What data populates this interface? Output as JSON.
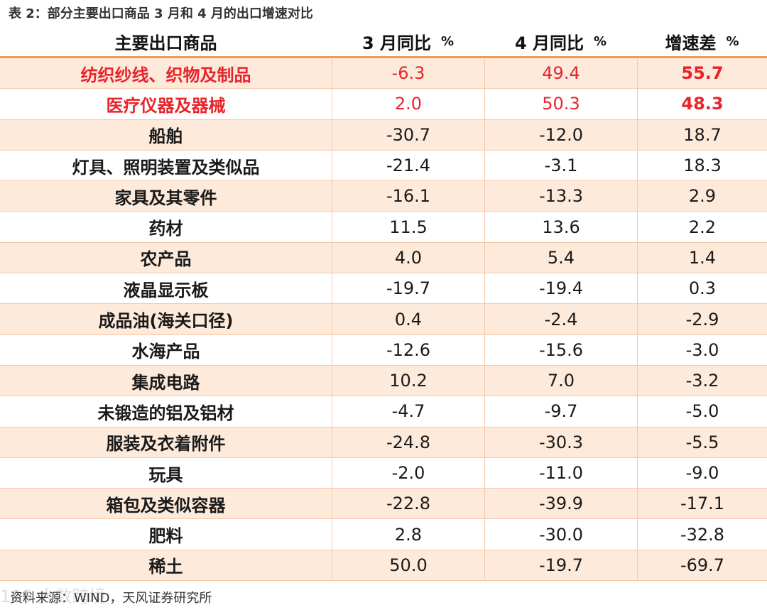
{
  "caption": "表 2：部分主要出口商品 3 月和 4 月的出口增速对比",
  "header": {
    "col1": "主要出口商品",
    "col2": "3 月同比",
    "col3": "4 月同比",
    "col4": "增速差",
    "unit": "%"
  },
  "rows": [
    {
      "name": "纺织纱线、织物及制品",
      "mar": "-6.3",
      "apr": "49.4",
      "diff": "55.7"
    },
    {
      "name": "医疗仪器及器械",
      "mar": "2.0",
      "apr": "50.3",
      "diff": "48.3"
    },
    {
      "name": "船舶",
      "mar": "-30.7",
      "apr": "-12.0",
      "diff": "18.7"
    },
    {
      "name": "灯具、照明装置及类似品",
      "mar": "-21.4",
      "apr": "-3.1",
      "diff": "18.3"
    },
    {
      "name": "家具及其零件",
      "mar": "-16.1",
      "apr": "-13.3",
      "diff": "2.9"
    },
    {
      "name": "药材",
      "mar": "11.5",
      "apr": "13.6",
      "diff": "2.2"
    },
    {
      "name": "农产品",
      "mar": "4.0",
      "apr": "5.4",
      "diff": "1.4"
    },
    {
      "name": "液晶显示板",
      "mar": "-19.7",
      "apr": "-19.4",
      "diff": "0.3"
    },
    {
      "name": "成品油(海关口径)",
      "mar": "0.4",
      "apr": "-2.4",
      "diff": "-2.9"
    },
    {
      "name": "水海产品",
      "mar": "-12.6",
      "apr": "-15.6",
      "diff": "-3.0"
    },
    {
      "name": "集成电路",
      "mar": "10.2",
      "apr": "7.0",
      "diff": "-3.2"
    },
    {
      "name": "未锻造的铝及铝材",
      "mar": "-4.7",
      "apr": "-9.7",
      "diff": "-5.0"
    },
    {
      "name": "服装及衣着附件",
      "mar": "-24.8",
      "apr": "-30.3",
      "diff": "-5.5"
    },
    {
      "name": "玩具",
      "mar": "-2.0",
      "apr": "-11.0",
      "diff": "-9.0"
    },
    {
      "name": "箱包及类似容器",
      "mar": "-22.8",
      "apr": "-39.9",
      "diff": "-17.1"
    },
    {
      "name": "肥料",
      "mar": "2.8",
      "apr": "-30.0",
      "diff": "-32.8"
    },
    {
      "name": "稀土",
      "mar": "50.0",
      "apr": "-19.7",
      "diff": "-69.7"
    }
  ],
  "source": "资料来源：WIND，天风证券研究所",
  "watermark": "100 大数跨境",
  "colors": {
    "highlight": "#e8242a",
    "shade": "#fdeadb",
    "rule": "#f19a5c"
  }
}
